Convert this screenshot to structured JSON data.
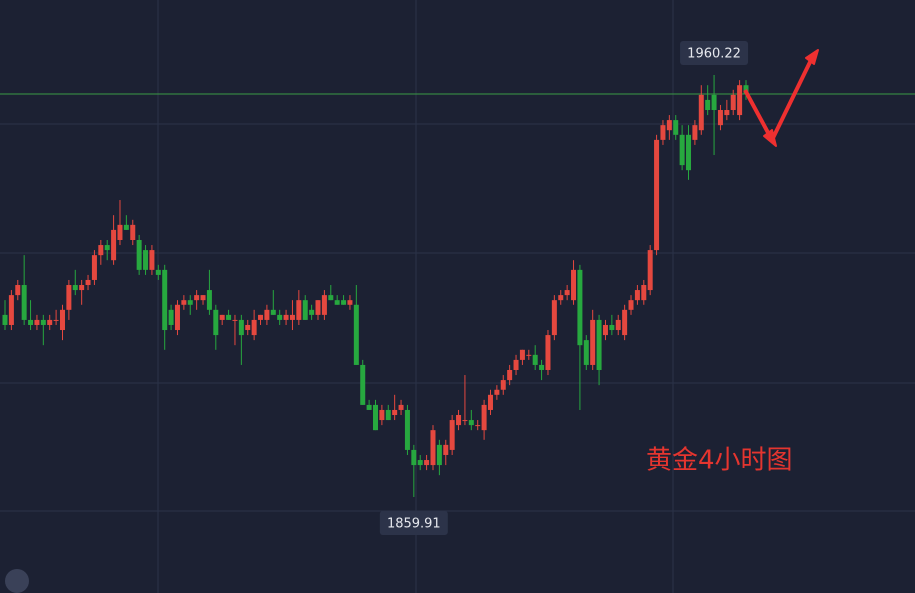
{
  "chart_data": {
    "type": "candlestick",
    "ylim": [
      1837.09,
      1978.05
    ],
    "up_color": "#e5483f",
    "down_color": "#27a83f",
    "price_line": 1955.7,
    "price_line_color": "#3a9a45",
    "high_label": 1960.22,
    "low_label": 1859.91,
    "annotation": "黄金4小时图",
    "annotation_color": "#e5352f",
    "series": [
      {
        "ohlc": [
          [
            1903.2,
            1906.7,
            1899.6,
            1900.8
          ],
          [
            1900.8,
            1909.1,
            1899.6,
            1907.9
          ],
          [
            1907.9,
            1911.5,
            1906.7,
            1910.3
          ],
          [
            1910.3,
            1917.4,
            1900.8,
            1902.0
          ],
          [
            1902.0,
            1906.7,
            1899.6,
            1900.8
          ],
          [
            1900.8,
            1903.2,
            1899.6,
            1902.0
          ],
          [
            1902.0,
            1903.2,
            1896.0,
            1900.8
          ],
          [
            1900.8,
            1903.2,
            1899.6,
            1902.0
          ],
          [
            1902.0,
            1904.4,
            1900.8,
            1902.0
          ],
          [
            1899.6,
            1905.6,
            1897.2,
            1904.4
          ],
          [
            1904.4,
            1911.5,
            1902.0,
            1910.3
          ],
          [
            1910.3,
            1913.9,
            1907.9,
            1909.1
          ],
          [
            1909.1,
            1911.5,
            1905.6,
            1910.3
          ],
          [
            1910.3,
            1912.7,
            1909.1,
            1911.5
          ],
          [
            1911.5,
            1918.6,
            1910.3,
            1917.4
          ],
          [
            1917.4,
            1921.0,
            1915.1,
            1919.8
          ],
          [
            1919.8,
            1921.0,
            1916.2,
            1918.6
          ],
          [
            1916.2,
            1926.9,
            1915.1,
            1923.4
          ],
          [
            1921.0,
            1930.5,
            1919.8,
            1924.6
          ],
          [
            1924.6,
            1926.9,
            1923.4,
            1923.4
          ],
          [
            1921.0,
            1925.8,
            1919.8,
            1924.6
          ],
          [
            1921.0,
            1922.2,
            1912.7,
            1913.9
          ],
          [
            1918.6,
            1919.8,
            1912.7,
            1913.9
          ],
          [
            1913.9,
            1919.8,
            1912.7,
            1918.6
          ],
          [
            1913.9,
            1915.1,
            1911.5,
            1912.7
          ],
          [
            1913.9,
            1915.1,
            1894.9,
            1899.6
          ],
          [
            1904.4,
            1905.6,
            1899.6,
            1900.8
          ],
          [
            1899.6,
            1906.7,
            1898.4,
            1905.6
          ],
          [
            1905.6,
            1907.9,
            1904.4,
            1906.7
          ],
          [
            1906.7,
            1907.9,
            1903.2,
            1905.6
          ],
          [
            1906.7,
            1909.1,
            1904.4,
            1907.9
          ],
          [
            1906.7,
            1907.9,
            1905.6,
            1907.9
          ],
          [
            1909.1,
            1913.9,
            1903.2,
            1904.4
          ],
          [
            1904.4,
            1905.6,
            1894.9,
            1898.4
          ],
          [
            1902.0,
            1903.2,
            1900.8,
            1903.2
          ],
          [
            1903.2,
            1904.4,
            1902.0,
            1902.0
          ],
          [
            1902.0,
            1903.2,
            1896.0,
            1902.0
          ],
          [
            1902.0,
            1903.2,
            1891.3,
            1898.4
          ],
          [
            1899.6,
            1902.0,
            1898.4,
            1900.8
          ],
          [
            1898.4,
            1904.4,
            1897.2,
            1902.0
          ],
          [
            1902.0,
            1903.2,
            1900.8,
            1903.2
          ],
          [
            1902.0,
            1905.6,
            1900.8,
            1904.4
          ],
          [
            1904.4,
            1909.1,
            1903.2,
            1903.2
          ],
          [
            1903.2,
            1904.4,
            1900.8,
            1902.0
          ],
          [
            1902.0,
            1904.4,
            1900.8,
            1903.2
          ],
          [
            1902.0,
            1906.7,
            1899.6,
            1903.2
          ],
          [
            1902.0,
            1909.1,
            1900.8,
            1906.7
          ],
          [
            1906.7,
            1907.9,
            1902.0,
            1902.0
          ],
          [
            1904.4,
            1905.6,
            1902.0,
            1903.2
          ],
          [
            1903.2,
            1906.7,
            1902.0,
            1906.7
          ],
          [
            1903.2,
            1909.1,
            1902.0,
            1907.9
          ],
          [
            1907.9,
            1910.3,
            1906.7,
            1906.7
          ],
          [
            1906.7,
            1907.9,
            1905.6,
            1905.6
          ],
          [
            1906.7,
            1907.9,
            1905.6,
            1905.6
          ],
          [
            1905.6,
            1907.9,
            1904.4,
            1906.7
          ],
          [
            1905.6,
            1910.3,
            1891.3,
            1891.3
          ],
          [
            1891.3,
            1892.5,
            1881.8,
            1881.8
          ],
          [
            1881.8,
            1883.0,
            1880.6,
            1880.6
          ],
          [
            1881.8,
            1883.0,
            1875.8,
            1875.8
          ],
          [
            1878.2,
            1881.8,
            1877.0,
            1880.6
          ],
          [
            1880.6,
            1881.8,
            1878.2,
            1878.2
          ],
          [
            1879.4,
            1884.2,
            1878.2,
            1880.6
          ],
          [
            1880.6,
            1883.0,
            1879.4,
            1881.8
          ],
          [
            1880.6,
            1881.8,
            1869.9,
            1871.1
          ],
          [
            1871.1,
            1872.3,
            1859.91,
            1867.5
          ],
          [
            1868.7,
            1869.9,
            1866.3,
            1867.5
          ],
          [
            1867.5,
            1869.9,
            1866.3,
            1868.7
          ],
          [
            1867.5,
            1877.0,
            1866.3,
            1875.8
          ],
          [
            1872.3,
            1873.5,
            1865.1,
            1867.5
          ],
          [
            1869.9,
            1873.5,
            1867.5,
            1872.3
          ],
          [
            1871.1,
            1879.4,
            1869.9,
            1878.2
          ],
          [
            1877.0,
            1880.6,
            1875.8,
            1879.4
          ],
          [
            1878.2,
            1888.9,
            1877.0,
            1878.2
          ],
          [
            1878.2,
            1880.6,
            1875.8,
            1877.0
          ],
          [
            1877.0,
            1878.2,
            1875.8,
            1877.0
          ],
          [
            1875.8,
            1883.0,
            1873.5,
            1881.8
          ],
          [
            1880.6,
            1885.4,
            1879.4,
            1884.2
          ],
          [
            1884.2,
            1886.5,
            1883.0,
            1885.4
          ],
          [
            1885.4,
            1888.9,
            1884.2,
            1887.7
          ],
          [
            1887.7,
            1891.3,
            1886.5,
            1890.1
          ],
          [
            1890.1,
            1893.7,
            1888.9,
            1892.5
          ],
          [
            1892.5,
            1894.9,
            1891.3,
            1894.9
          ],
          [
            1893.7,
            1894.9,
            1892.5,
            1893.7
          ],
          [
            1893.7,
            1896.0,
            1890.1,
            1891.3
          ],
          [
            1891.3,
            1892.5,
            1887.7,
            1890.1
          ],
          [
            1890.1,
            1899.6,
            1888.9,
            1898.4
          ],
          [
            1898.4,
            1907.9,
            1897.2,
            1906.7
          ],
          [
            1906.7,
            1909.1,
            1905.6,
            1907.9
          ],
          [
            1907.9,
            1910.3,
            1906.7,
            1909.1
          ],
          [
            1906.7,
            1916.2,
            1905.6,
            1913.9
          ],
          [
            1913.9,
            1915.1,
            1880.6,
            1896.0
          ],
          [
            1897.2,
            1898.4,
            1890.1,
            1891.3
          ],
          [
            1891.3,
            1904.4,
            1890.1,
            1902.0
          ],
          [
            1902.0,
            1903.2,
            1886.5,
            1890.1
          ],
          [
            1898.4,
            1902.0,
            1897.2,
            1900.8
          ],
          [
            1900.8,
            1903.2,
            1898.4,
            1899.6
          ],
          [
            1899.6,
            1903.2,
            1898.4,
            1902.0
          ],
          [
            1898.4,
            1905.6,
            1897.2,
            1904.4
          ],
          [
            1904.4,
            1907.9,
            1903.2,
            1906.7
          ],
          [
            1906.7,
            1910.3,
            1905.6,
            1909.1
          ],
          [
            1906.7,
            1911.5,
            1905.6,
            1910.3
          ],
          [
            1909.1,
            1919.8,
            1907.9,
            1918.6
          ],
          [
            1918.6,
            1946.0,
            1917.4,
            1944.8
          ],
          [
            1944.8,
            1949.5,
            1943.6,
            1948.3
          ],
          [
            1947.1,
            1950.7,
            1944.8,
            1949.5
          ],
          [
            1949.5,
            1950.7,
            1944.8,
            1946.0
          ],
          [
            1946.0,
            1948.3,
            1937.6,
            1938.8
          ],
          [
            1946.0,
            1948.3,
            1935.3,
            1937.6
          ],
          [
            1944.8,
            1949.5,
            1943.6,
            1948.3
          ],
          [
            1947.1,
            1957.8,
            1946.0,
            1955.5
          ],
          [
            1954.3,
            1957.8,
            1950.7,
            1951.9
          ],
          [
            1955.5,
            1960.22,
            1941.2,
            1951.9
          ],
          [
            1948.3,
            1953.1,
            1947.1,
            1951.9
          ],
          [
            1950.7,
            1954.3,
            1949.5,
            1951.9
          ],
          [
            1951.9,
            1956.7,
            1950.7,
            1955.5
          ],
          [
            1950.7,
            1959.0,
            1949.5,
            1957.8
          ],
          [
            1957.8,
            1959.0,
            1954.3,
            1955.7
          ]
        ]
      }
    ]
  }
}
